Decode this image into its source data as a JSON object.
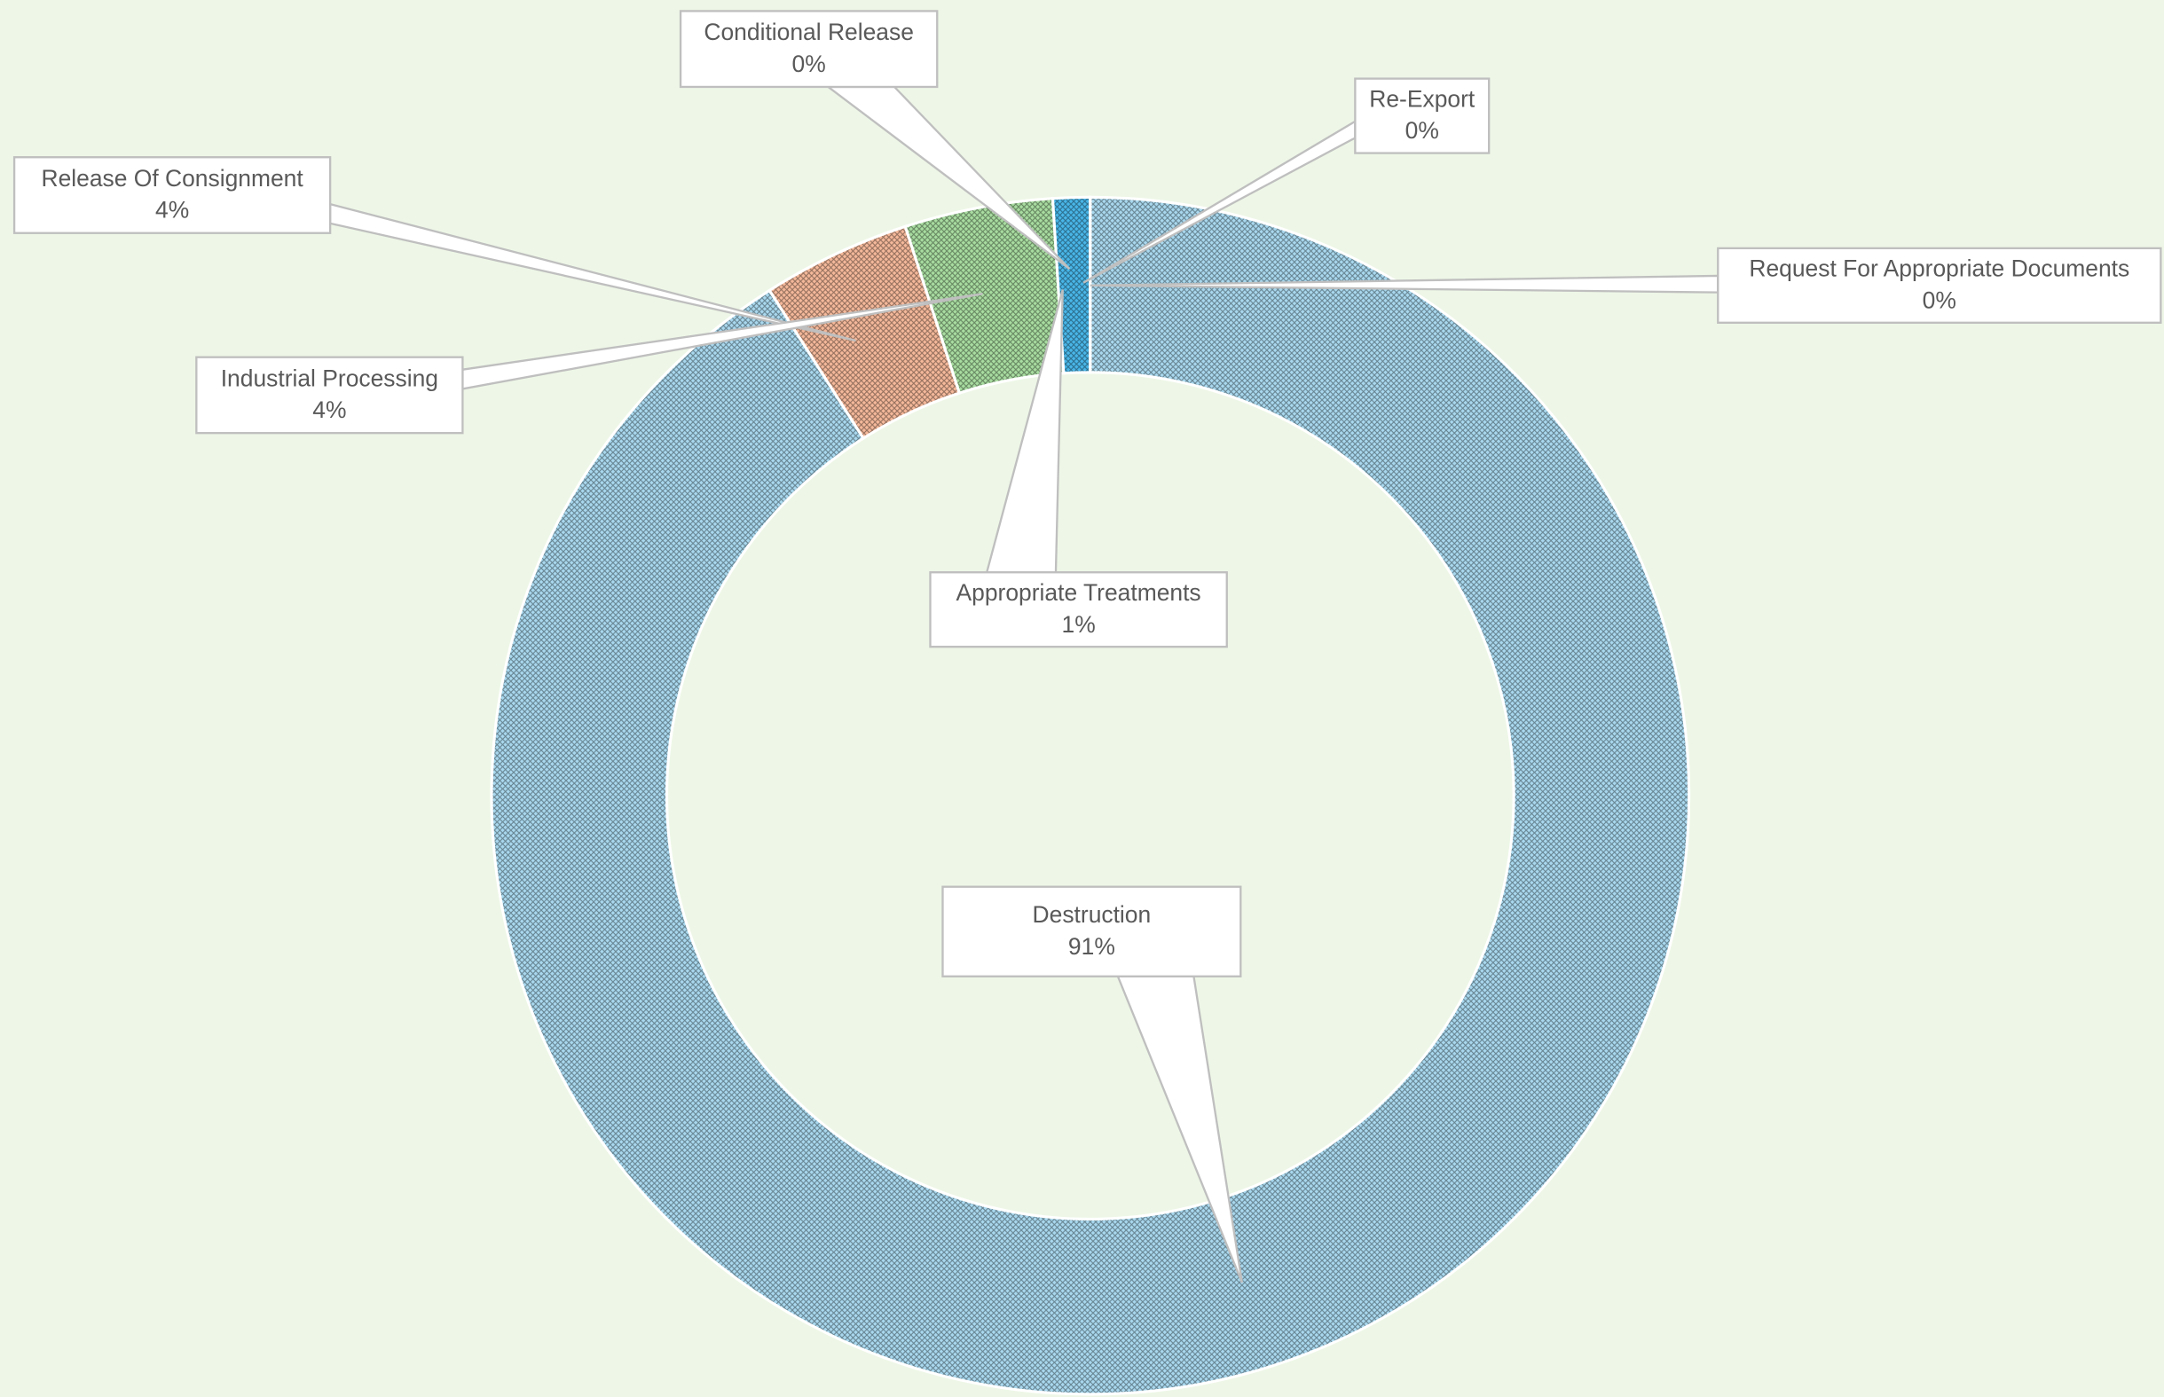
{
  "chart_data": {
    "type": "donut",
    "categories": [
      "Destruction",
      "Release Of  Consignment",
      "Industrial Processing",
      "Appropriate Treatments",
      "Conditional Release",
      "Re-Export",
      "Request For Appropriate Documents"
    ],
    "values": [
      91,
      4,
      4,
      1,
      0,
      0,
      0
    ],
    "value_labels": [
      "91%",
      "4%",
      "4%",
      "1%",
      "0%",
      "0%",
      "0%"
    ],
    "colors": [
      "#a9d8ee",
      "#f4b89a",
      "#a8dca0",
      "#49b6e8",
      "#c04fc0",
      "#70c060",
      "#ffffff"
    ],
    "pattern": "crosshatch"
  }
}
